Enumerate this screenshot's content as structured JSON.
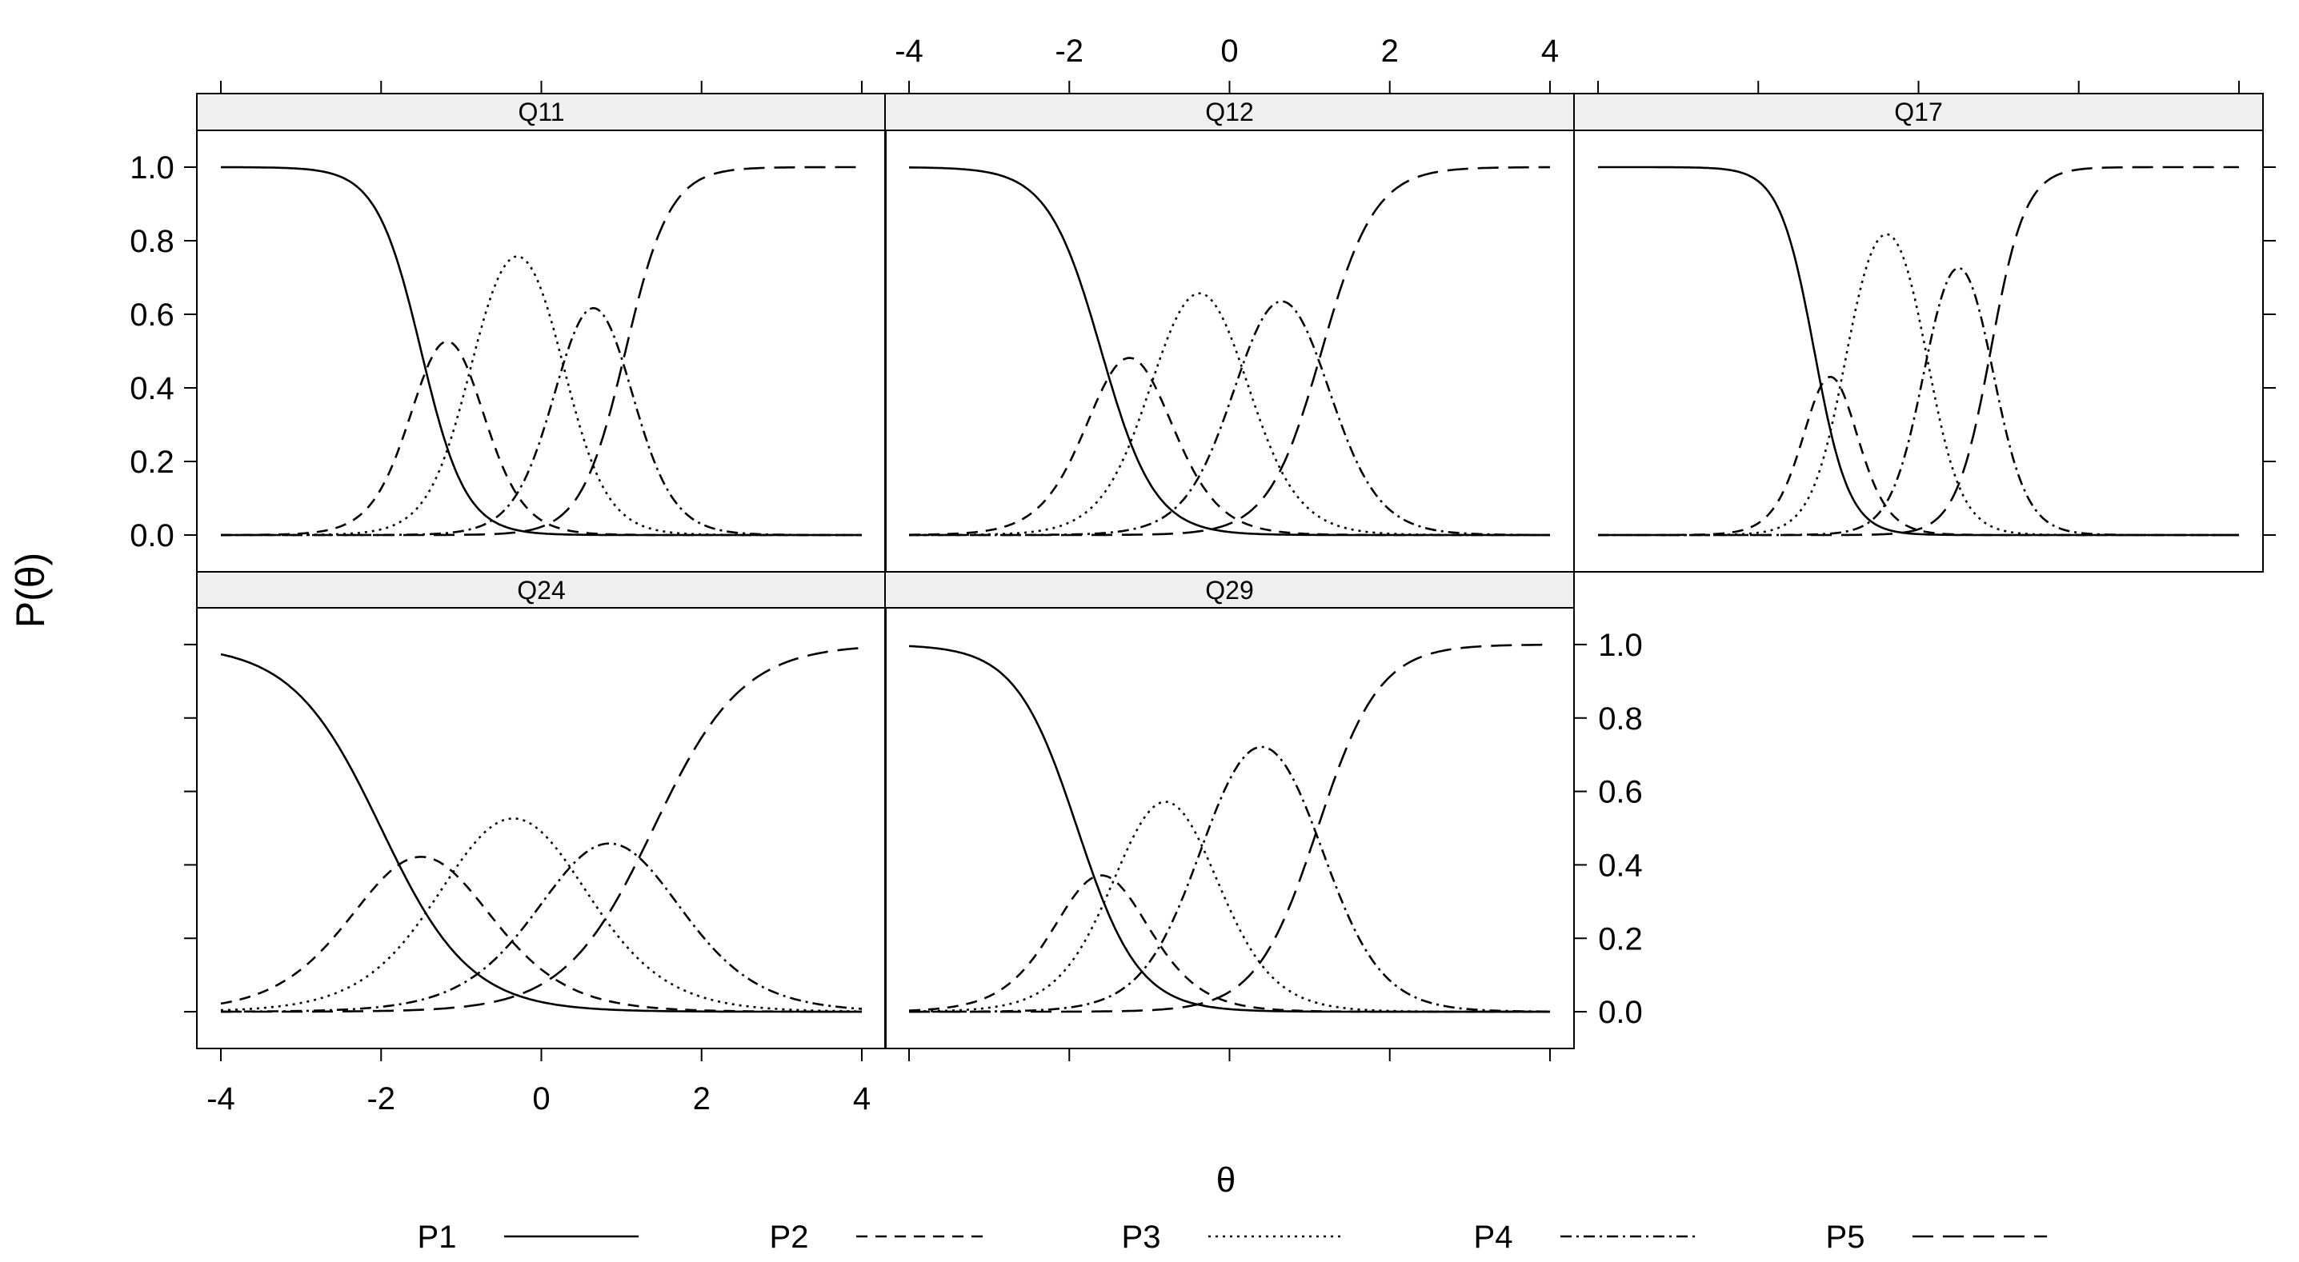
{
  "chart_data": {
    "type": "line",
    "layout": "lattice 3 columns x 2 rows, panels Q11 Q12 Q17 (top row), Q24 Q29 (bottom row)",
    "xlabel": "θ",
    "ylabel": "P(θ)",
    "xlim": [
      -4.3,
      4.3
    ],
    "ylim": [
      -0.1,
      1.1
    ],
    "x_ticks": [
      -4,
      -2,
      0,
      2,
      4
    ],
    "x_tick_labels": [
      "-4",
      "-2",
      "0",
      "2",
      "4"
    ],
    "y_ticks": [
      0.0,
      0.2,
      0.4,
      0.6,
      0.8,
      1.0
    ],
    "y_tick_labels": [
      "0.0",
      "0.2",
      "0.4",
      "0.6",
      "0.8",
      "1.0"
    ],
    "grid": false,
    "legend_position": "bottom",
    "series_styles": [
      {
        "name": "P1",
        "dash": "solid"
      },
      {
        "name": "P2",
        "dash": "short-dash"
      },
      {
        "name": "P3",
        "dash": "dotted"
      },
      {
        "name": "P4",
        "dash": "dot-dash"
      },
      {
        "name": "P5",
        "dash": "long-dash"
      }
    ],
    "model": "graded response, P(θ) for categories 1..5",
    "panels": [
      {
        "title": "Q11",
        "a": 3.6,
        "b": [
          -1.5,
          -0.85,
          0.25,
          1.05
        ]
      },
      {
        "title": "Q12",
        "a": 3.0,
        "b": [
          -1.6,
          -0.9,
          0.15,
          1.15
        ]
      },
      {
        "title": "Q17",
        "a": 4.6,
        "b": [
          -1.3,
          -0.9,
          0.1,
          0.9
        ]
      },
      {
        "title": "Q24",
        "a": 1.8,
        "b": [
          -2.0,
          -1.0,
          0.3,
          1.4
        ]
      },
      {
        "title": "Q29",
        "a": 2.6,
        "b": [
          -1.9,
          -1.3,
          -0.3,
          1.1
        ]
      }
    ]
  }
}
